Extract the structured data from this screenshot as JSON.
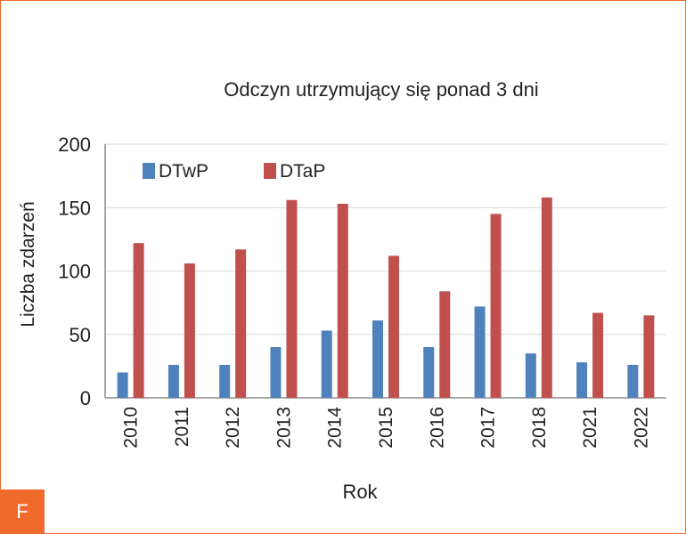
{
  "badge": "F",
  "colors": {
    "frame": "#f06a2c",
    "grid": "#d9d9d9",
    "axis": "#555555",
    "text": "#222222"
  },
  "chart_data": {
    "type": "bar",
    "title": "Odczyn utrzymujący się ponad 3 dni",
    "xlabel": "Rok",
    "ylabel": "Liczba zdarzeń",
    "ylim": [
      0,
      200
    ],
    "yticks": [
      0,
      50,
      100,
      150,
      200
    ],
    "grid": true,
    "legend_position": "top-left",
    "categories": [
      "2010",
      "2011",
      "2012",
      "2013",
      "2014",
      "2015",
      "2016",
      "2017",
      "2018",
      "2021",
      "2022"
    ],
    "series": [
      {
        "name": "DTwP",
        "color": "#4f81bd",
        "values": [
          20,
          26,
          26,
          40,
          53,
          61,
          40,
          72,
          35,
          28,
          26
        ]
      },
      {
        "name": "DTaP",
        "color": "#c0504d",
        "values": [
          122,
          106,
          117,
          156,
          153,
          112,
          84,
          145,
          158,
          67,
          65
        ]
      }
    ]
  }
}
